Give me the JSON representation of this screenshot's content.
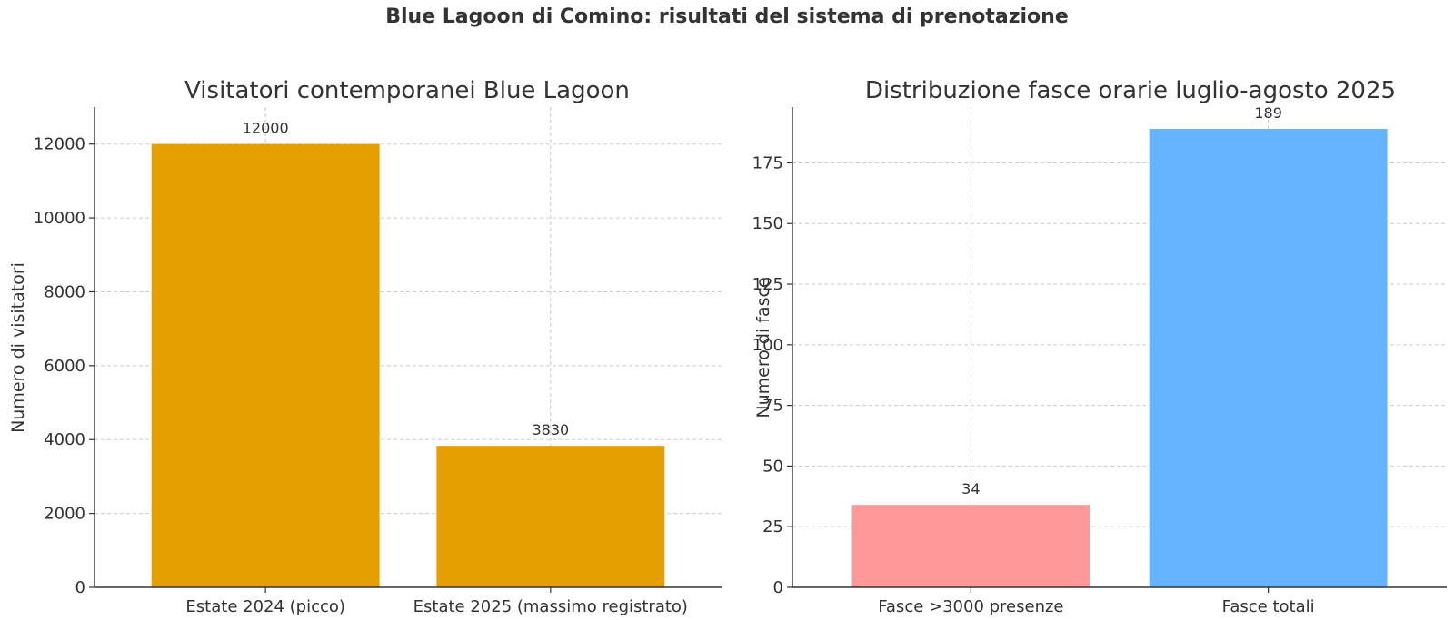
{
  "figure_title": "Blue Lagoon di Comino: risultati del sistema di prenotazione",
  "chart_data": [
    {
      "type": "bar",
      "title": "Visitatori contemporanei Blue Lagoon",
      "xlabel": "",
      "ylabel": "Numero di visitatori",
      "categories": [
        "Estate 2024 (picco)",
        "Estate 2025 (massimo registrato)"
      ],
      "values": [
        12000,
        3830
      ],
      "value_labels": [
        "12000",
        "3830"
      ],
      "colors": [
        "#E69F00",
        "#E69F00"
      ],
      "ylim": [
        0,
        13000
      ],
      "yticks": [
        0,
        2000,
        4000,
        6000,
        8000,
        10000,
        12000
      ],
      "grid": true
    },
    {
      "type": "bar",
      "title": "Distribuzione fasce orarie luglio-agosto 2025",
      "xlabel": "",
      "ylabel": "Numero di fasce",
      "categories": [
        "Fasce >3000 presenze",
        "Fasce totali"
      ],
      "values": [
        34,
        189
      ],
      "value_labels": [
        "34",
        "189"
      ],
      "colors": [
        "#FF9999",
        "#66B3FF"
      ],
      "ylim": [
        0,
        198
      ],
      "yticks": [
        0,
        25,
        50,
        75,
        100,
        125,
        150,
        175
      ],
      "grid": true
    }
  ]
}
